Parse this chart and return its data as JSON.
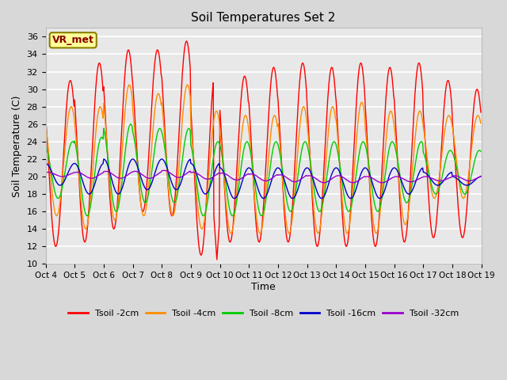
{
  "title": "Soil Temperatures Set 2",
  "xlabel": "Time",
  "ylabel": "Soil Temperature (C)",
  "ylim": [
    10,
    37
  ],
  "yticks": [
    10,
    12,
    14,
    16,
    18,
    20,
    22,
    24,
    26,
    28,
    30,
    32,
    34,
    36
  ],
  "fig_bg": "#d8d8d8",
  "plot_bg": "#e8e8e8",
  "annotation_text": "VR_met",
  "annotation_bg": "#ffff99",
  "annotation_border": "#8B8000",
  "series_colors": {
    "Tsoil -2cm": "#ff0000",
    "Tsoil -4cm": "#ff8c00",
    "Tsoil -8cm": "#00cc00",
    "Tsoil -16cm": "#0000cc",
    "Tsoil -32cm": "#9900cc"
  },
  "n_days": 15,
  "xtick_labels": [
    "Oct 4",
    "Oct 5",
    "Oct 6",
    "Oct 7",
    "Oct 8",
    "Oct 9",
    "Oct 10",
    "Oct 11",
    "Oct 12",
    "Oct 13",
    "Oct 14",
    "Oct 15",
    "Oct 16",
    "Oct 17",
    "Oct 18",
    "Oct 19"
  ],
  "xtick_positions": [
    0,
    1,
    2,
    3,
    4,
    5,
    6,
    7,
    8,
    9,
    10,
    11,
    12,
    13,
    14,
    15
  ],
  "peak_2cm": [
    31.0,
    33.0,
    34.5,
    34.5,
    35.5,
    32.0,
    31.5,
    32.5,
    33.0,
    32.5,
    33.0,
    32.5,
    33.0,
    31.0,
    30.0
  ],
  "trough_2cm": [
    12.0,
    12.5,
    14.0,
    16.0,
    15.5,
    11.0,
    12.5,
    12.5,
    12.5,
    12.0,
    12.0,
    12.0,
    12.5,
    13.0,
    13.0
  ],
  "peak_4cm": [
    28.0,
    28.0,
    30.5,
    29.5,
    30.5,
    27.5,
    27.0,
    27.0,
    28.0,
    28.0,
    28.5,
    27.5,
    27.5,
    27.0,
    27.0
  ],
  "trough_4cm": [
    15.5,
    14.0,
    15.0,
    15.5,
    15.5,
    14.0,
    13.5,
    13.5,
    13.5,
    13.5,
    13.5,
    13.5,
    14.5,
    17.5,
    17.5
  ],
  "peak_8cm": [
    24.0,
    24.5,
    26.0,
    25.5,
    25.5,
    24.0,
    24.0,
    24.0,
    24.0,
    24.0,
    24.0,
    24.0,
    24.0,
    23.0,
    23.0
  ],
  "trough_8cm": [
    17.5,
    15.5,
    16.0,
    17.0,
    17.0,
    15.5,
    15.5,
    15.5,
    16.0,
    16.0,
    16.0,
    16.0,
    17.0,
    18.0,
    18.0
  ],
  "peak_16cm": [
    21.5,
    21.5,
    22.0,
    22.0,
    22.0,
    21.5,
    21.0,
    21.0,
    21.0,
    21.0,
    21.0,
    21.0,
    21.0,
    20.5,
    20.0
  ],
  "trough_16cm": [
    19.0,
    18.0,
    18.0,
    18.5,
    18.5,
    18.0,
    17.5,
    17.5,
    17.5,
    17.5,
    17.5,
    17.5,
    18.0,
    19.0,
    19.0
  ],
  "peak_32cm": [
    20.5,
    20.5,
    20.6,
    20.6,
    20.7,
    20.5,
    20.4,
    20.3,
    20.2,
    20.1,
    20.1,
    20.0,
    20.0,
    20.0,
    20.1
  ],
  "trough_32cm": [
    20.0,
    19.8,
    19.8,
    19.8,
    19.9,
    19.7,
    19.6,
    19.5,
    19.4,
    19.3,
    19.3,
    19.3,
    19.4,
    19.5,
    19.5
  ],
  "phase_2cm": 0.35,
  "phase_4cm": 0.38,
  "phase_8cm": 0.43,
  "phase_16cm": 0.5,
  "phase_32cm": 0.58,
  "pts_per_day": 48
}
